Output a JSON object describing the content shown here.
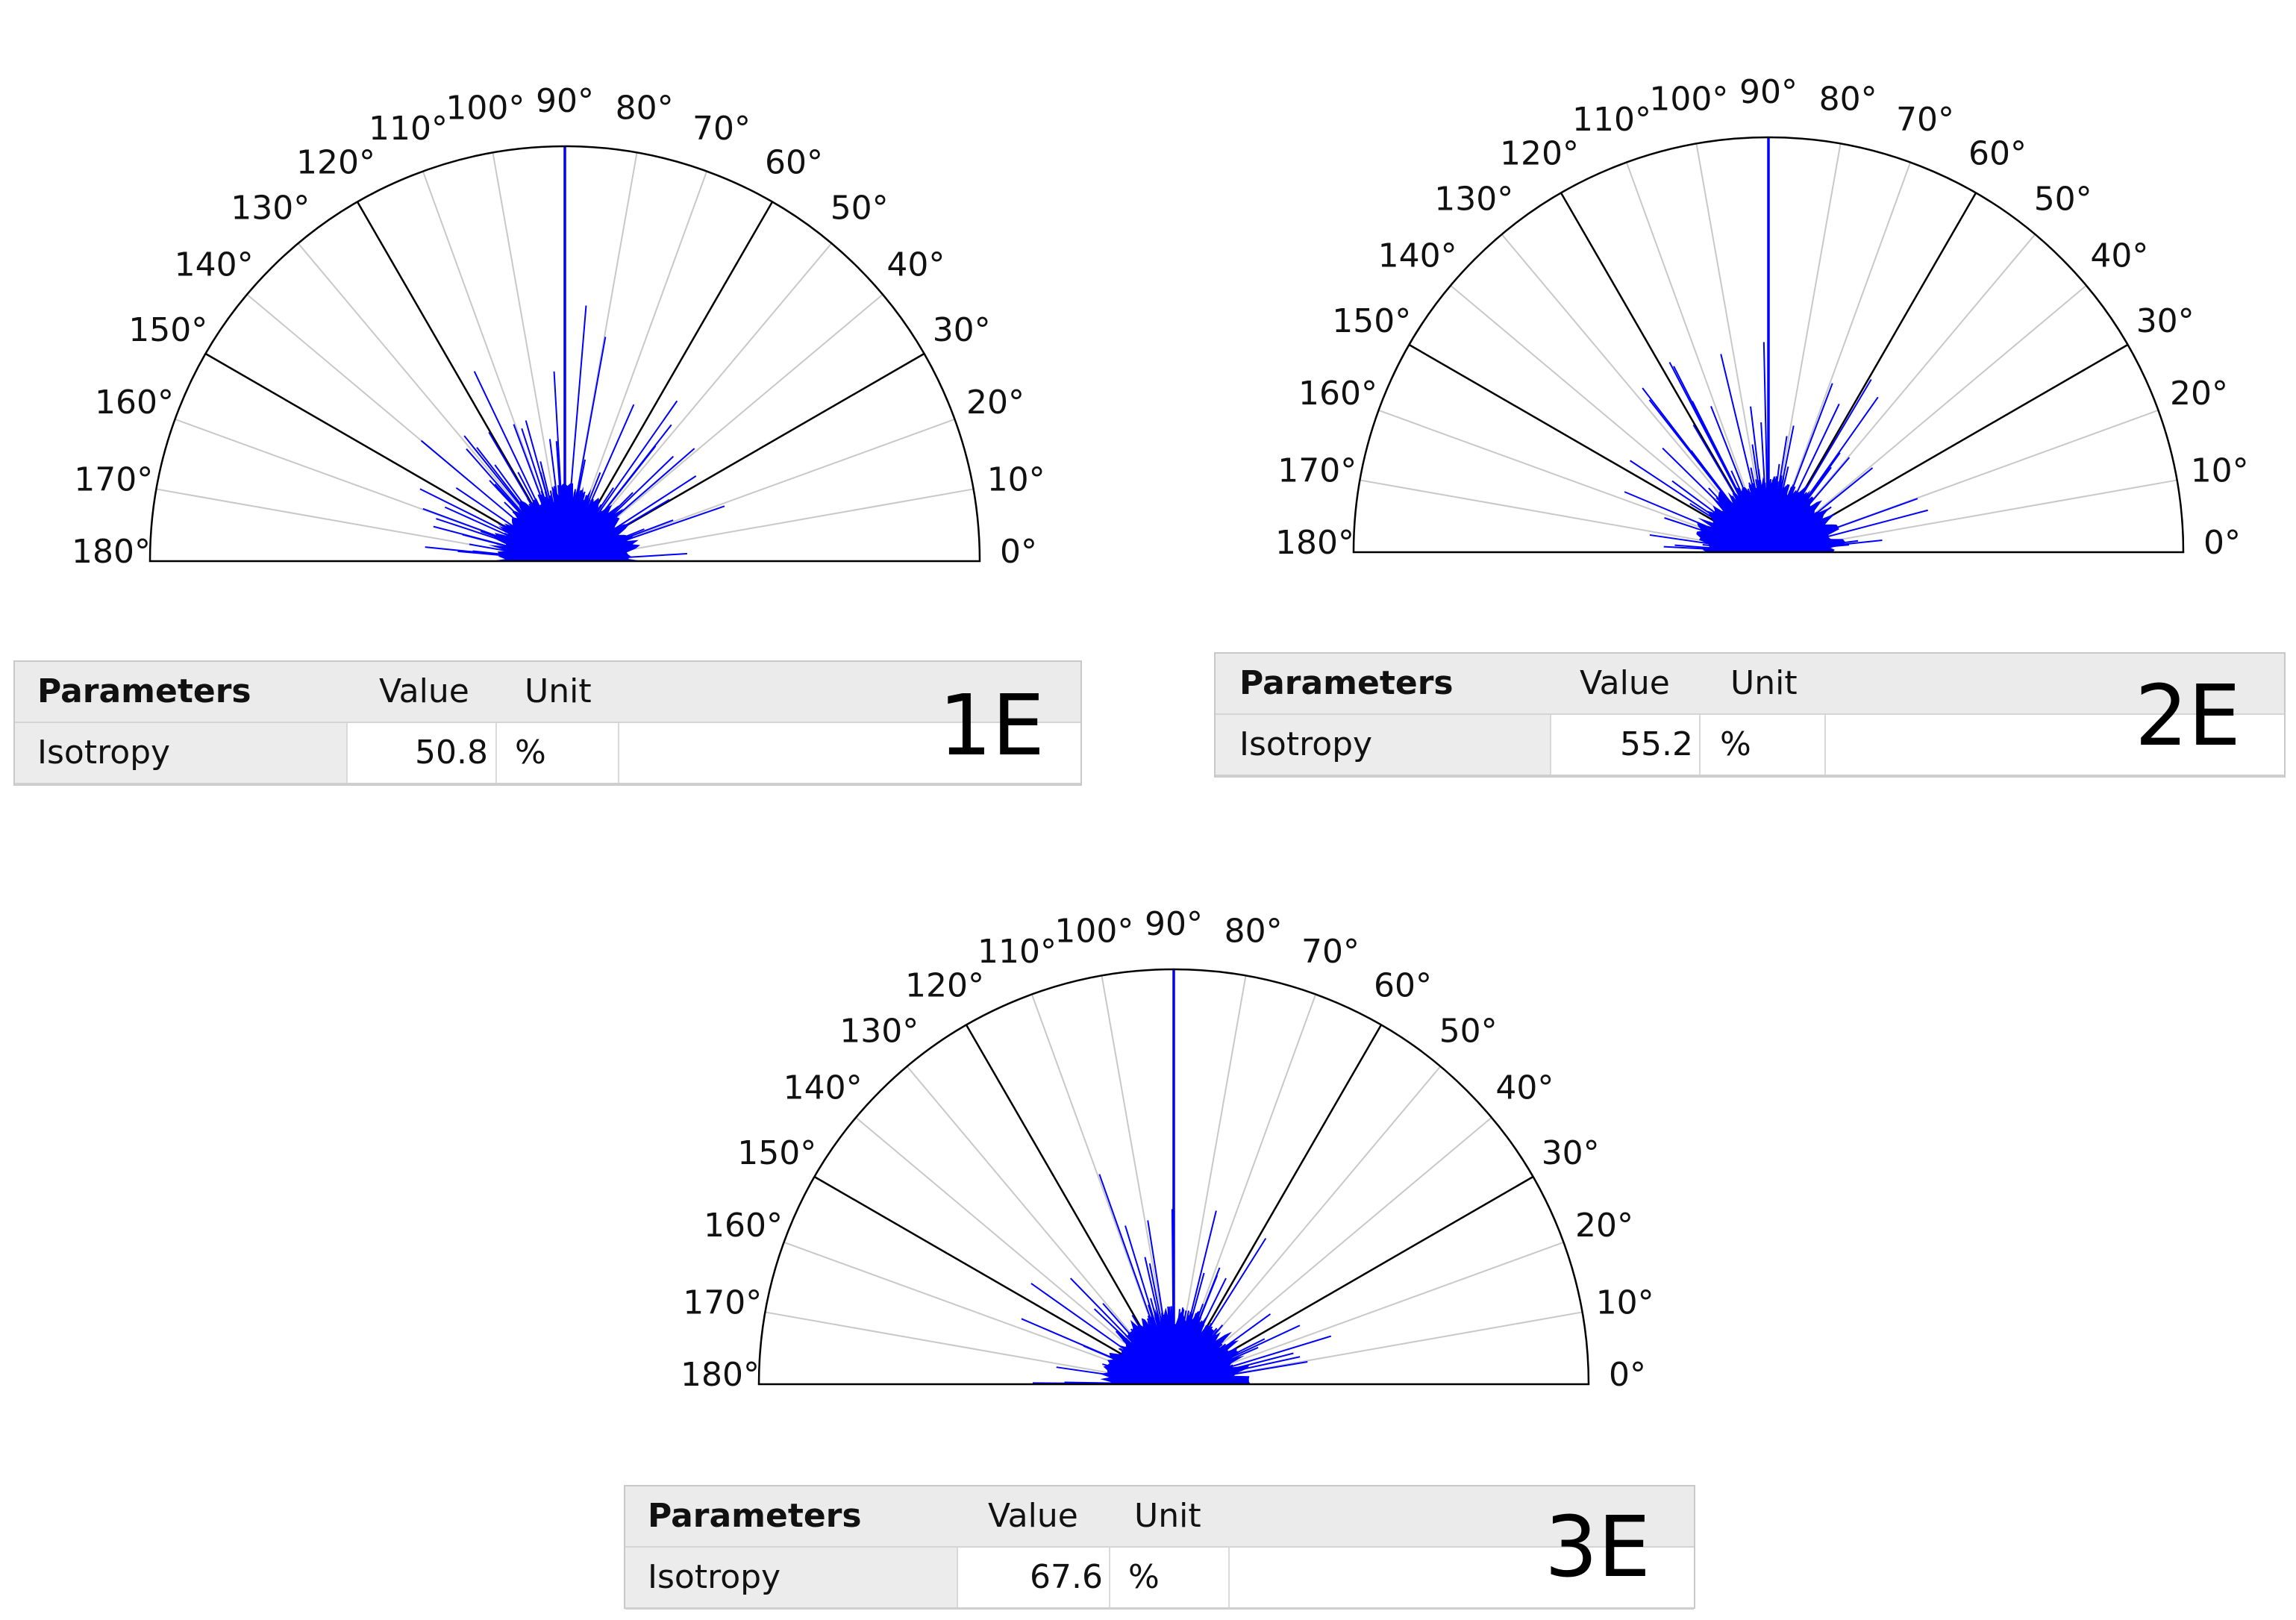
{
  "chart_data": [
    {
      "type": "polar-histogram",
      "panel": "1E",
      "theta_ticks_deg": [
        0,
        10,
        20,
        30,
        40,
        50,
        60,
        70,
        80,
        90,
        100,
        110,
        120,
        130,
        140,
        150,
        160,
        170,
        180
      ],
      "theta_tick_labels": [
        "0°",
        "10°",
        "20°",
        "30°",
        "40°",
        "50°",
        "60°",
        "70°",
        "80°",
        "90°",
        "100°",
        "110°",
        "120°",
        "130°",
        "140°",
        "150°",
        "160°",
        "170°",
        "180°"
      ],
      "dominant_direction_deg": 90,
      "isotropy_percent": 50.8
    },
    {
      "type": "polar-histogram",
      "panel": "2E",
      "theta_ticks_deg": [
        0,
        10,
        20,
        30,
        40,
        50,
        60,
        70,
        80,
        90,
        100,
        110,
        120,
        130,
        140,
        150,
        160,
        170,
        180
      ],
      "theta_tick_labels": [
        "0°",
        "10°",
        "20°",
        "30°",
        "40°",
        "50°",
        "60°",
        "70°",
        "80°",
        "90°",
        "100°",
        "110°",
        "120°",
        "130°",
        "140°",
        "150°",
        "160°",
        "170°",
        "180°"
      ],
      "dominant_direction_deg": 90,
      "isotropy_percent": 55.2
    },
    {
      "type": "polar-histogram",
      "panel": "3E",
      "theta_ticks_deg": [
        0,
        10,
        20,
        30,
        40,
        50,
        60,
        70,
        80,
        90,
        100,
        110,
        120,
        130,
        140,
        150,
        160,
        170,
        180
      ],
      "theta_tick_labels": [
        "0°",
        "10°",
        "20°",
        "30°",
        "40°",
        "50°",
        "60°",
        "70°",
        "80°",
        "90°",
        "100°",
        "110°",
        "120°",
        "130°",
        "140°",
        "150°",
        "160°",
        "170°",
        "180°"
      ],
      "dominant_direction_deg": 90,
      "isotropy_percent": 67.6
    }
  ],
  "colors": {
    "bars": "#0000ff",
    "major_spokes": "#000000",
    "minor_spokes": "#c8c8c8",
    "table_header": "#ebebeb"
  },
  "panels": [
    {
      "label": "1E",
      "table": {
        "headers": [
          "Parameters",
          "Value",
          "Unit"
        ],
        "row": {
          "parameter": "Isotropy",
          "value": "50.8",
          "unit": "%"
        }
      }
    },
    {
      "label": "2E",
      "table": {
        "headers": [
          "Parameters",
          "Value",
          "Unit"
        ],
        "row": {
          "parameter": "Isotropy",
          "value": "55.2",
          "unit": "%"
        }
      }
    },
    {
      "label": "3E",
      "table": {
        "headers": [
          "Parameters",
          "Value",
          "Unit"
        ],
        "row": {
          "parameter": "Isotropy",
          "value": "67.6",
          "unit": "%"
        }
      }
    }
  ]
}
